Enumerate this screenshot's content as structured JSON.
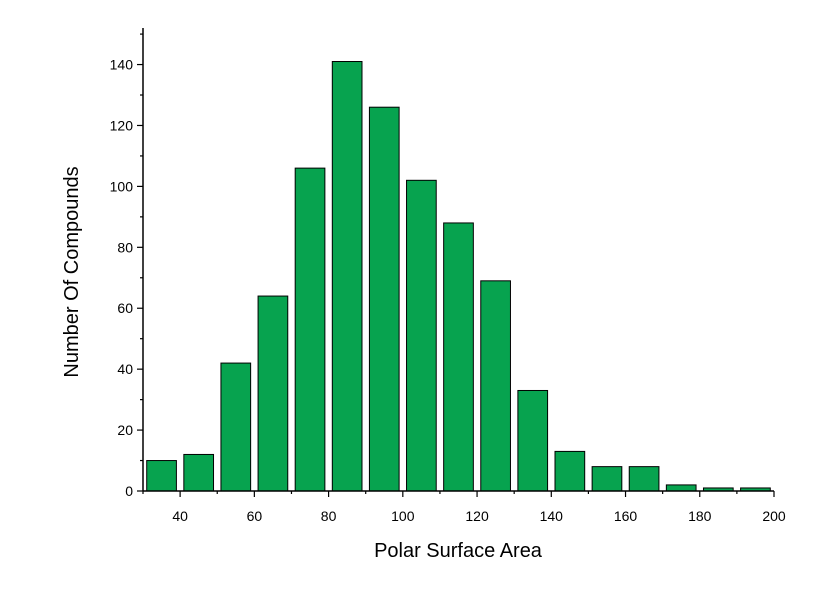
{
  "chart_data": {
    "type": "bar",
    "title": "",
    "xlabel": "Polar Surface Area",
    "ylabel": "Number Of Compounds",
    "bar_color": "#07A34F",
    "bar_edge_color": "#000000",
    "xlim": [
      30,
      200
    ],
    "ylim": [
      0,
      152
    ],
    "x_ticks": [
      40,
      60,
      80,
      100,
      120,
      140,
      160,
      180,
      200
    ],
    "y_ticks": [
      0,
      20,
      40,
      60,
      80,
      100,
      120,
      140
    ],
    "bin_width": 10,
    "bars": [
      {
        "x": 35,
        "value": 10
      },
      {
        "x": 45,
        "value": 12
      },
      {
        "x": 55,
        "value": 42
      },
      {
        "x": 65,
        "value": 64
      },
      {
        "x": 75,
        "value": 106
      },
      {
        "x": 85,
        "value": 141
      },
      {
        "x": 95,
        "value": 126
      },
      {
        "x": 105,
        "value": 102
      },
      {
        "x": 115,
        "value": 88
      },
      {
        "x": 125,
        "value": 69
      },
      {
        "x": 135,
        "value": 33
      },
      {
        "x": 145,
        "value": 13
      },
      {
        "x": 155,
        "value": 8
      },
      {
        "x": 165,
        "value": 8
      },
      {
        "x": 175,
        "value": 2
      },
      {
        "x": 185,
        "value": 1
      },
      {
        "x": 195,
        "value": 1
      }
    ],
    "grid": false,
    "legend": "none"
  }
}
